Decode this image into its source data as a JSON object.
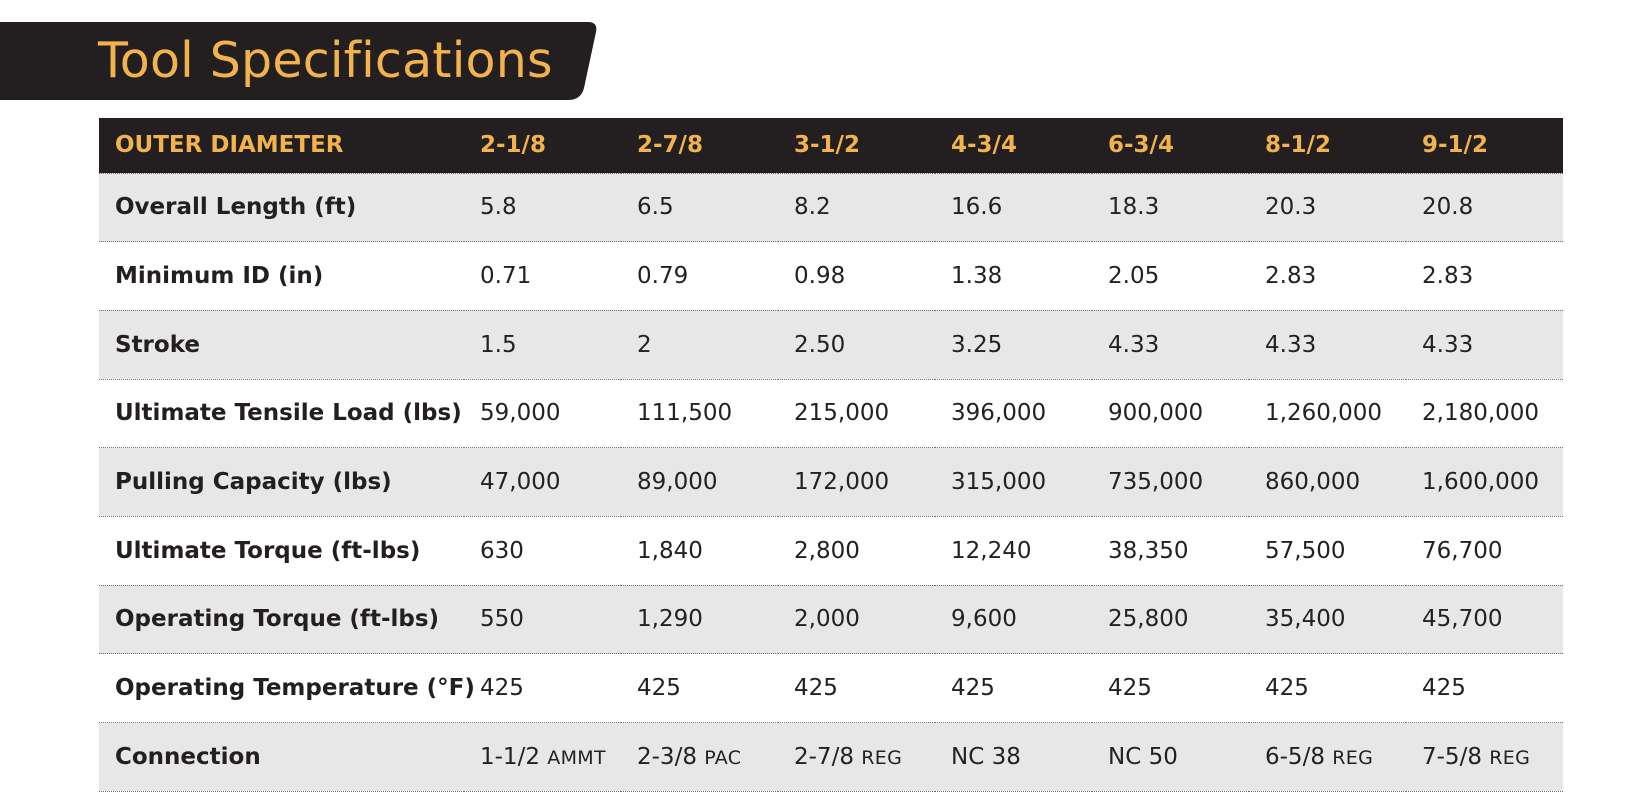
{
  "title": "Tool Specifications",
  "colors": {
    "dark": "#231f20",
    "accent": "#f2b24c",
    "row_shade": "#e7e7e7"
  },
  "table": {
    "headers": [
      "OUTER DIAMETER",
      "2-1/8",
      "2-7/8",
      "3-1/2",
      "4-3/4",
      "6-3/4",
      "8-1/2",
      "9-1/2"
    ],
    "rows": [
      {
        "label": "Overall Length (ft)",
        "values": [
          "5.8",
          "6.5",
          "8.2",
          "16.6",
          "18.3",
          "20.3",
          "20.8"
        ]
      },
      {
        "label": "Minimum ID (in)",
        "values": [
          "0.71",
          "0.79",
          "0.98",
          "1.38",
          "2.05",
          "2.83",
          "2.83"
        ]
      },
      {
        "label": "Stroke",
        "values": [
          "1.5",
          "2",
          "2.50",
          "3.25",
          "4.33",
          "4.33",
          "4.33"
        ]
      },
      {
        "label": "Ultimate Tensile Load (lbs)",
        "values": [
          "59,000",
          "111,500",
          "215,000",
          "396,000",
          "900,000",
          "1,260,000",
          "2,180,000"
        ]
      },
      {
        "label": "Pulling Capacity (lbs)",
        "values": [
          "47,000",
          "89,000",
          "172,000",
          "315,000",
          "735,000",
          "860,000",
          "1,600,000"
        ]
      },
      {
        "label": "Ultimate Torque (ft-lbs)",
        "values": [
          "630",
          "1,840",
          "2,800",
          "12,240",
          "38,350",
          "57,500",
          "76,700"
        ]
      },
      {
        "label": "Operating Torque (ft-lbs)",
        "values": [
          "550",
          "1,290",
          "2,000",
          "9,600",
          "25,800",
          "35,400",
          "45,700"
        ]
      },
      {
        "label": "Operating Temperature (°F)",
        "values": [
          "425",
          "425",
          "425",
          "425",
          "425",
          "425",
          "425"
        ]
      }
    ],
    "connection": {
      "label": "Connection",
      "values": [
        {
          "size": "1-1/2",
          "type": "AMMT"
        },
        {
          "size": "2-3/8",
          "type": "PAC"
        },
        {
          "size": "2-7/8",
          "type": "REG"
        },
        {
          "size": "NC 38",
          "type": ""
        },
        {
          "size": "NC 50",
          "type": ""
        },
        {
          "size": "6-5/8",
          "type": "REG"
        },
        {
          "size": "7-5/8",
          "type": "REG"
        }
      ]
    }
  }
}
